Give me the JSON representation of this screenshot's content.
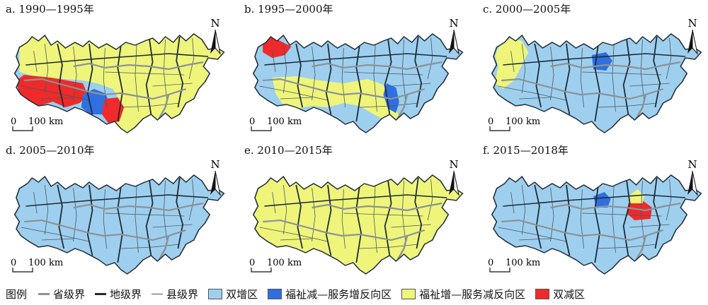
{
  "panels": [
    {
      "title": "a. 1990—1995年",
      "dominant": "blue",
      "patches": [
        {
          "cls": "yellow"
        },
        {
          "cls": "red"
        },
        {
          "cls": "dark"
        },
        {
          "cls": "red2"
        }
      ]
    },
    {
      "title": "b. 1995—2000年",
      "dominant": "blue",
      "patches": [
        {
          "cls": "yellow"
        },
        {
          "cls": "red"
        },
        {
          "cls": "dark"
        }
      ]
    },
    {
      "title": "c. 2000—2005年",
      "dominant": "blue",
      "patches": [
        {
          "cls": "yellow"
        },
        {
          "cls": "dark"
        }
      ]
    },
    {
      "title": "d. 2005—2010年",
      "dominant": "blue",
      "patches": []
    },
    {
      "title": "e. 2010—2015年",
      "dominant": "yellow",
      "patches": []
    },
    {
      "title": "f. 2015—2018年",
      "dominant": "blue",
      "patches": [
        {
          "cls": "dark"
        },
        {
          "cls": "red"
        },
        {
          "cls": "yellow"
        }
      ]
    }
  ],
  "north_label": "N",
  "scale": {
    "zero": "0",
    "distance": "100 km"
  },
  "legend": {
    "title": "图例",
    "province_boundary": "省级界",
    "prefecture_boundary": "地级界",
    "county_boundary": "县级界",
    "double_increase": "双增区",
    "welfare_down_service_up": "福祉减—服务增反向区",
    "welfare_up_service_down": "福祉增—服务减反向区",
    "double_decrease": "双减区"
  },
  "colors": {
    "double_increase": "#9ecfee",
    "welfare_down_service_up": "#2f6fe0",
    "welfare_up_service_down": "#eef57a",
    "double_decrease": "#ee2a2a",
    "province_line": "#8c9297",
    "prefecture_line": "#1e2a36",
    "county_line": "#4a5560"
  }
}
